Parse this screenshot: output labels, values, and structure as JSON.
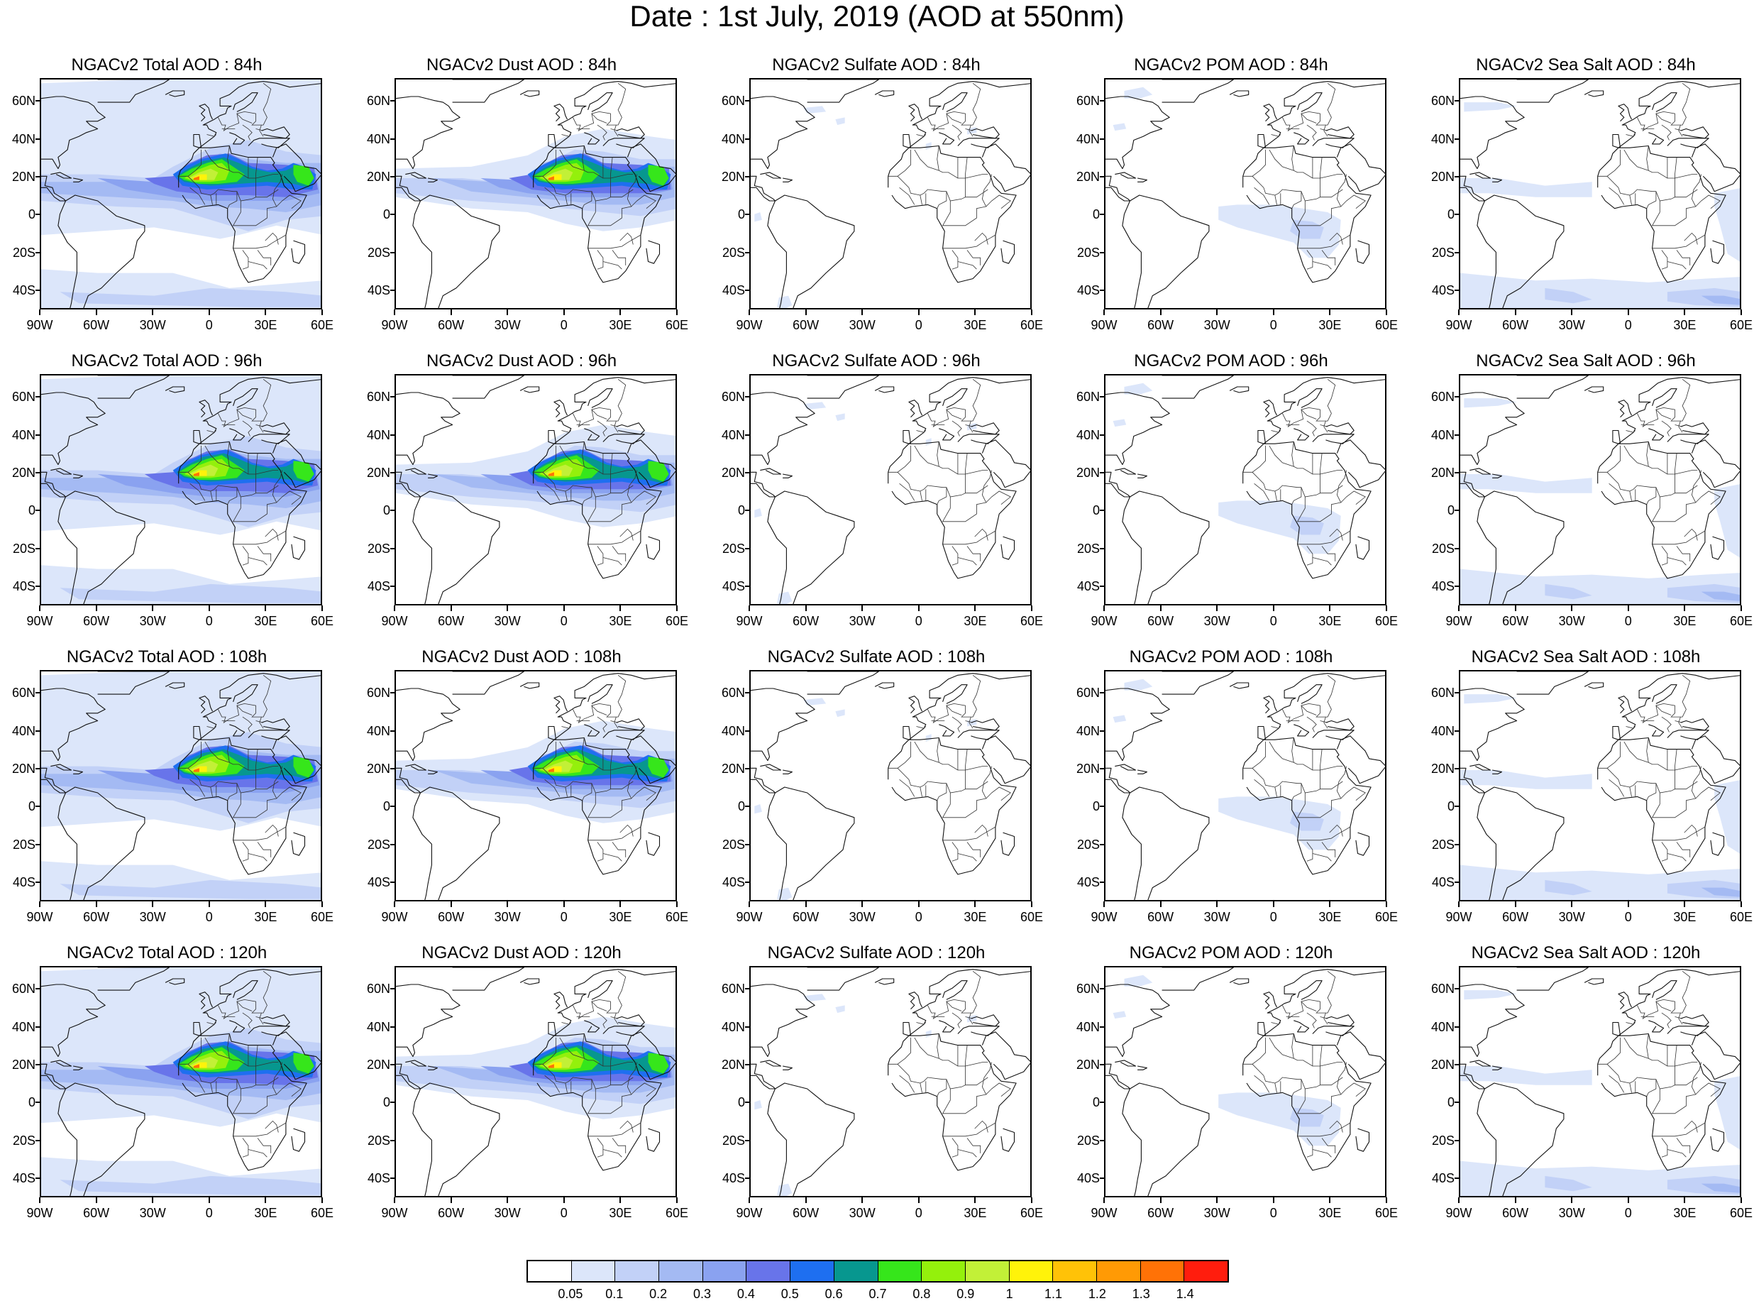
{
  "title": "Date : 1st July, 2019 (AOD at 550nm)",
  "axes": {
    "lat_labels": [
      "60N",
      "40N",
      "20N",
      "0",
      "20S",
      "40S"
    ],
    "lat_values": [
      60,
      40,
      20,
      0,
      -20,
      -40
    ],
    "lon_labels": [
      "90W",
      "60W",
      "30W",
      "0",
      "30E",
      "60E"
    ],
    "lon_values": [
      -90,
      -60,
      -30,
      0,
      30,
      60
    ],
    "lat_range": [
      -50,
      72
    ],
    "lon_range": [
      -90,
      60
    ]
  },
  "panels": [
    {
      "title": "NGACv2 Total AOD : 84h",
      "species": "total"
    },
    {
      "title": "NGACv2 Dust AOD : 84h",
      "species": "dust"
    },
    {
      "title": "NGACv2 Sulfate AOD : 84h",
      "species": "sulfate"
    },
    {
      "title": "NGACv2 POM AOD : 84h",
      "species": "pom"
    },
    {
      "title": "NGACv2 Sea Salt AOD : 84h",
      "species": "seasalt"
    },
    {
      "title": "NGACv2 Total AOD : 96h",
      "species": "total"
    },
    {
      "title": "NGACv2 Dust AOD : 96h",
      "species": "dust"
    },
    {
      "title": "NGACv2 Sulfate AOD : 96h",
      "species": "sulfate"
    },
    {
      "title": "NGACv2 POM AOD : 96h",
      "species": "pom"
    },
    {
      "title": "NGACv2 Sea Salt AOD : 96h",
      "species": "seasalt"
    },
    {
      "title": "NGACv2 Total AOD : 108h",
      "species": "total"
    },
    {
      "title": "NGACv2 Dust AOD : 108h",
      "species": "dust"
    },
    {
      "title": "NGACv2 Sulfate AOD : 108h",
      "species": "sulfate"
    },
    {
      "title": "NGACv2 POM AOD : 108h",
      "species": "pom"
    },
    {
      "title": "NGACv2 Sea Salt AOD : 108h",
      "species": "seasalt"
    },
    {
      "title": "NGACv2 Total AOD : 120h",
      "species": "total"
    },
    {
      "title": "NGACv2 Dust AOD : 120h",
      "species": "dust"
    },
    {
      "title": "NGACv2 Sulfate AOD : 120h",
      "species": "sulfate"
    },
    {
      "title": "NGACv2 POM AOD : 120h",
      "species": "pom"
    },
    {
      "title": "NGACv2 Sea Salt  AOD : 120h",
      "species": "seasalt"
    }
  ],
  "colorbar": {
    "labels": [
      "0.05",
      "0.1",
      "0.2",
      "0.3",
      "0.4",
      "0.5",
      "0.6",
      "0.7",
      "0.8",
      "0.9",
      "1",
      "1.1",
      "1.2",
      "1.3",
      "1.4"
    ],
    "colors": [
      "#ffffff",
      "#dce6fa",
      "#c2d1f7",
      "#a4baf3",
      "#8aa2f0",
      "#6874ea",
      "#1e6ff0",
      "#07978f",
      "#36e61b",
      "#94f00c",
      "#c2f037",
      "#fff30a",
      "#ffc207",
      "#ff9a05",
      "#ff7206",
      "#ff1d0d"
    ]
  }
}
